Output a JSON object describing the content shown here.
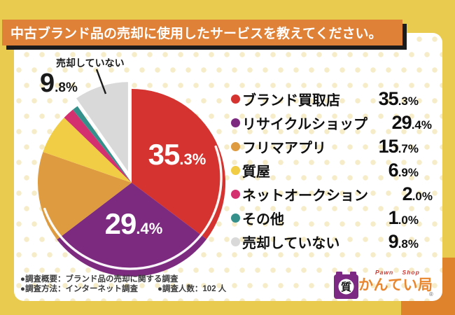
{
  "title": "中古ブランド品の売却に使用したサービスを教えてください。",
  "chart_data": {
    "type": "pie",
    "title": "中古ブランド品の売却に使用したサービスを教えてください。",
    "unit": "%",
    "start_angle_deg": 0,
    "direction": "clockwise",
    "legend_position": "right",
    "series": [
      {
        "label": "ブランド買取店",
        "value": 35.3,
        "color": "#d4332f",
        "label_inside": true
      },
      {
        "label": "リサイクルショップ",
        "value": 29.4,
        "color": "#7c2a80",
        "label_inside": true
      },
      {
        "label": "フリマアプリ",
        "value": 15.7,
        "color": "#de9b40"
      },
      {
        "label": "質屋",
        "value": 6.9,
        "color": "#f1cd45"
      },
      {
        "label": "ネットオークション",
        "value": 2.0,
        "color": "#d4306f"
      },
      {
        "label": "その他",
        "value": 1.0,
        "color": "#35908c"
      },
      {
        "label": "売却していない",
        "value": 9.8,
        "color": "#d9d9d9",
        "exploded": true,
        "callout": true
      }
    ]
  },
  "footer": {
    "line1": "●調査概要：ブランド品の売却に関する調査",
    "line2a": "●調査方法：インターネット調査",
    "line2b": "●調査人数：102 人"
  },
  "logo": {
    "tagline": "Pawn Shop",
    "name": "かんてい局",
    "badge_char": "質",
    "registered_mark": "®"
  },
  "colors": {
    "background": "#e9cb50",
    "accent_corner": "#e0832d",
    "card": "#ffffff",
    "card_dot": "#f6ecc8",
    "banner_bg": "#e08138",
    "banner_shadow": "#1c1c1c",
    "banner_text": "#ffffff",
    "pie_inside_label": "#ffffff",
    "annotation": "#1a1a1a",
    "footer_text": "#3c3c3c",
    "logo_purple": "#7b2982",
    "logo_orange": "#e8872f",
    "logo_red": "#c93a35"
  }
}
